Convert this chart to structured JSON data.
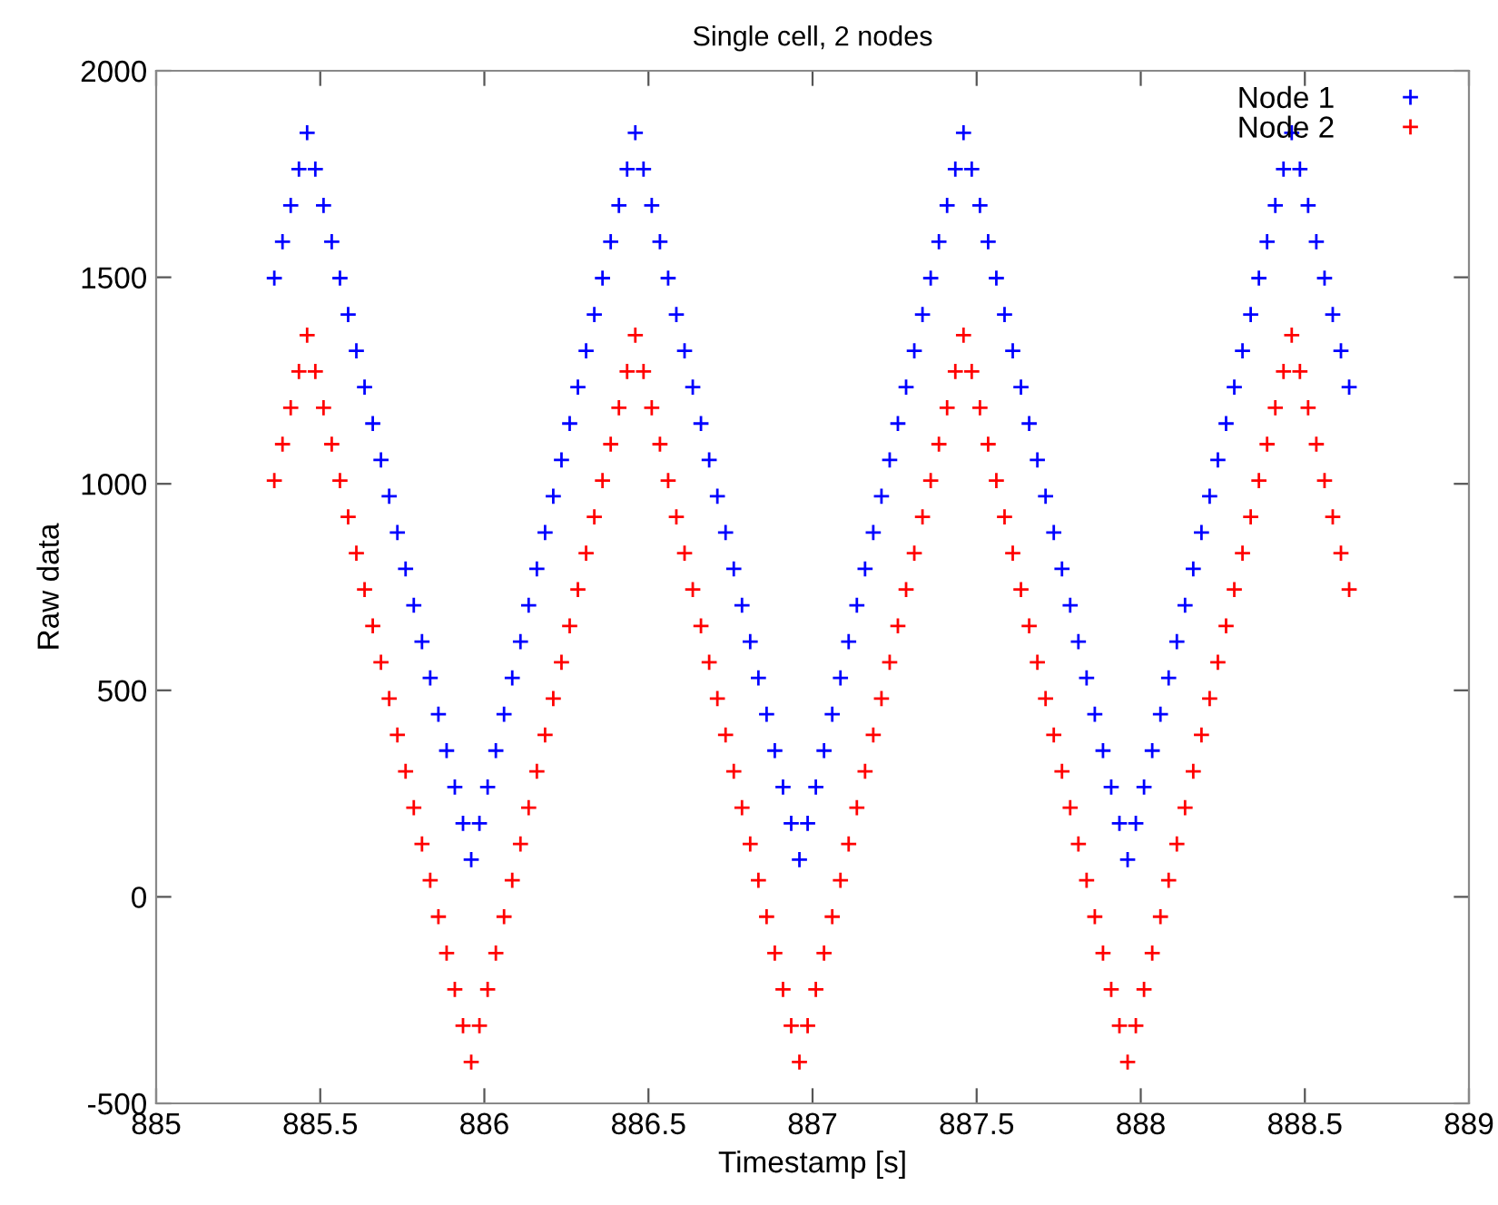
{
  "chart_data": {
    "type": "scatter",
    "title": "Single cell, 2 nodes",
    "xlabel": "Timestamp [s]",
    "ylabel": "Raw data",
    "x": [
      885.36,
      885.385,
      885.41,
      885.435,
      885.46,
      885.485,
      885.51,
      885.535,
      885.56,
      885.585,
      885.61,
      885.635,
      885.66,
      885.685,
      885.71,
      885.735,
      885.76,
      885.785,
      885.81,
      885.835,
      885.86,
      885.885,
      885.91,
      885.935,
      885.96,
      885.985,
      886.01,
      886.035,
      886.06,
      886.085,
      886.11,
      886.135,
      886.16,
      886.185,
      886.21,
      886.235,
      886.26,
      886.285,
      886.31,
      886.335,
      886.36,
      886.385,
      886.41,
      886.435,
      886.46,
      886.485,
      886.51,
      886.535,
      886.56,
      886.585,
      886.61,
      886.635,
      886.66,
      886.685,
      886.71,
      886.735,
      886.76,
      886.785,
      886.81,
      886.835,
      886.86,
      886.885,
      886.91,
      886.935,
      886.96,
      886.985,
      887.01,
      887.035,
      887.06,
      887.085,
      887.11,
      887.135,
      887.16,
      887.185,
      887.21,
      887.235,
      887.26,
      887.285,
      887.31,
      887.335,
      887.36,
      887.385,
      887.41,
      887.435,
      887.46,
      887.485,
      887.51,
      887.535,
      887.56,
      887.585,
      887.61,
      887.635,
      887.66,
      887.685,
      887.71,
      887.735,
      887.76,
      887.785,
      887.81,
      887.835,
      887.86,
      887.885,
      887.91,
      887.935,
      887.96,
      887.985,
      888.01,
      888.035,
      888.06,
      888.085,
      888.11,
      888.135,
      888.16,
      888.185,
      888.21,
      888.235,
      888.26,
      888.285,
      888.31,
      888.335,
      888.36,
      888.385,
      888.41,
      888.435,
      888.46,
      888.485,
      888.51,
      888.535,
      888.56,
      888.585,
      888.61,
      888.635
    ],
    "series": [
      {
        "name": "Node 1",
        "color": "#0000ff",
        "values": [
          1498,
          1586,
          1674,
          1762,
          1850,
          1762,
          1674,
          1586,
          1498,
          1410,
          1322,
          1234,
          1146,
          1058,
          970,
          882,
          794,
          706,
          618,
          530,
          442,
          354,
          266,
          178,
          90,
          178,
          266,
          354,
          442,
          530,
          618,
          706,
          794,
          882,
          970,
          1058,
          1146,
          1234,
          1322,
          1410,
          1498,
          1586,
          1674,
          1762,
          1850,
          1762,
          1674,
          1586,
          1498,
          1410,
          1322,
          1234,
          1146,
          1058,
          970,
          882,
          794,
          706,
          618,
          530,
          442,
          354,
          266,
          178,
          90,
          178,
          266,
          354,
          442,
          530,
          618,
          706,
          794,
          882,
          970,
          1058,
          1146,
          1234,
          1322,
          1410,
          1498,
          1586,
          1674,
          1762,
          1850,
          1762,
          1674,
          1586,
          1498,
          1410,
          1322,
          1234,
          1146,
          1058,
          970,
          882,
          794,
          706,
          618,
          530,
          442,
          354,
          266,
          178,
          90,
          178,
          266,
          354,
          442,
          530,
          618,
          706,
          794,
          882,
          970,
          1058,
          1146,
          1234,
          1322,
          1410,
          1498,
          1586,
          1674,
          1762,
          1850,
          1762,
          1674,
          1586,
          1498,
          1410,
          1322,
          1234
        ]
      },
      {
        "name": "Node 2",
        "color": "#ff0000",
        "values": [
          1008,
          1096,
          1184,
          1272,
          1360,
          1272,
          1184,
          1096,
          1008,
          920,
          832,
          744,
          656,
          568,
          480,
          392,
          304,
          216,
          128,
          40,
          -48,
          -136,
          -224,
          -312,
          -400,
          -312,
          -224,
          -136,
          -48,
          40,
          128,
          216,
          304,
          392,
          480,
          568,
          656,
          744,
          832,
          920,
          1008,
          1096,
          1184,
          1272,
          1360,
          1272,
          1184,
          1096,
          1008,
          920,
          832,
          744,
          656,
          568,
          480,
          392,
          304,
          216,
          128,
          40,
          -48,
          -136,
          -224,
          -312,
          -400,
          -312,
          -224,
          -136,
          -48,
          40,
          128,
          216,
          304,
          392,
          480,
          568,
          656,
          744,
          832,
          920,
          1008,
          1096,
          1184,
          1272,
          1360,
          1272,
          1184,
          1096,
          1008,
          920,
          832,
          744,
          656,
          568,
          480,
          392,
          304,
          216,
          128,
          40,
          -48,
          -136,
          -224,
          -312,
          -400,
          -312,
          -224,
          -136,
          -48,
          40,
          128,
          216,
          304,
          392,
          480,
          568,
          656,
          744,
          832,
          920,
          1008,
          1096,
          1184,
          1272,
          1360,
          1272,
          1184,
          1096,
          1008,
          920,
          832,
          744
        ]
      }
    ],
    "xlim": [
      885,
      889
    ],
    "xticks": [
      885,
      885.5,
      886,
      886.5,
      887,
      887.5,
      888,
      888.5,
      889
    ],
    "ylim": [
      -500,
      2000
    ],
    "yticks": [
      -500,
      0,
      500,
      1000,
      1500,
      2000
    ],
    "marker": "cross",
    "legend": "top right",
    "grid": false
  }
}
